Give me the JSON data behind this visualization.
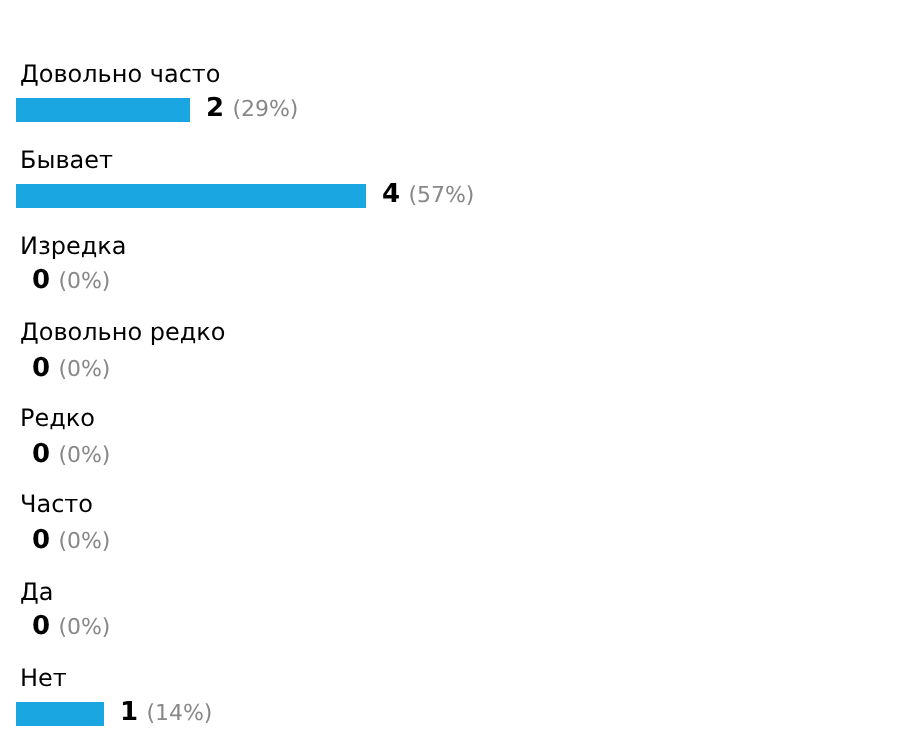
{
  "chart_data": {
    "type": "bar",
    "orientation": "horizontal",
    "categories": [
      "Довольно часто",
      "Бывает",
      "Изредка",
      "Довольно редко",
      "Редко",
      "Часто",
      "Да",
      "Нет"
    ],
    "values": [
      2,
      4,
      0,
      0,
      0,
      0,
      0,
      1
    ],
    "value_labels": [
      "2 (29%)",
      "4 (57%)",
      "0 (0%)",
      "0 (0%)",
      "0 (0%)",
      "0 (0%)",
      "0 (0%)",
      "1 (14%)"
    ],
    "color": "#1aa6e0",
    "legend": false
  }
}
